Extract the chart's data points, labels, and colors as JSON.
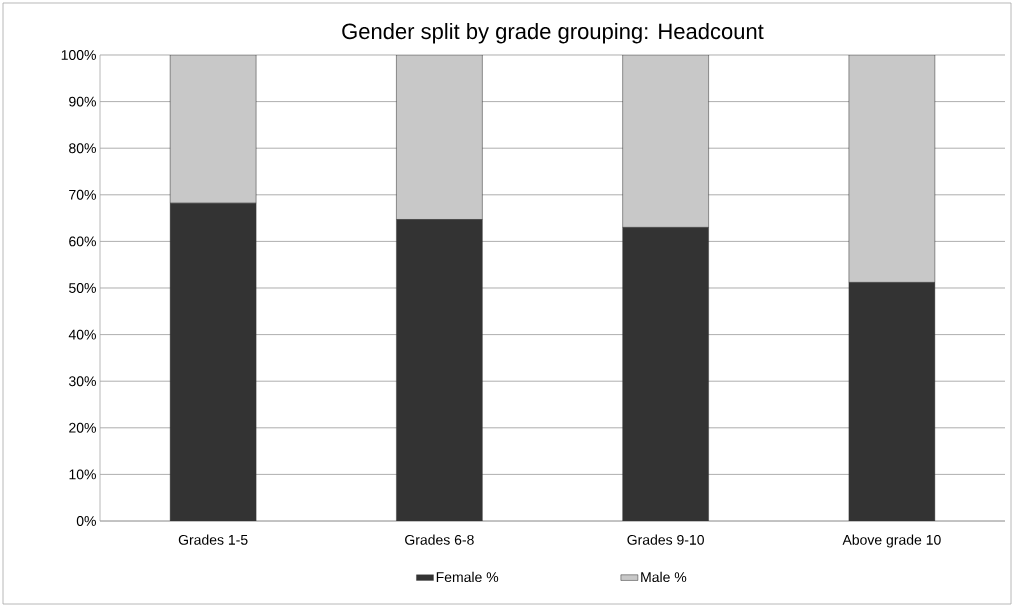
{
  "chart_data": {
    "type": "bar",
    "title": "Gender split by grade grouping: Headcount",
    "categories": [
      "Grades 1-5",
      "Grades 6-8",
      "Grades 9-10",
      "Above grade 10"
    ],
    "series": [
      {
        "name": "Female %",
        "color": "#333333",
        "values": [
          68.2,
          64.7,
          63.0,
          51.2
        ]
      },
      {
        "name": "Male %",
        "color": "#c8c8c8",
        "values": [
          31.8,
          35.3,
          37.0,
          48.8
        ]
      }
    ],
    "stacked": true,
    "ylim": [
      0,
      100
    ],
    "yticks": [
      {
        "value": 0,
        "label": "0%"
      },
      {
        "value": 10,
        "label": "10%"
      },
      {
        "value": 20,
        "label": "20%"
      },
      {
        "value": 30,
        "label": "30%"
      },
      {
        "value": 40,
        "label": "40%"
      },
      {
        "value": 50,
        "label": "50%"
      },
      {
        "value": 60,
        "label": "60%"
      },
      {
        "value": 70,
        "label": "70%"
      },
      {
        "value": 80,
        "label": "80%"
      },
      {
        "value": 90,
        "label": "90%"
      },
      {
        "value": 100,
        "label": "100%"
      }
    ],
    "grid": "y",
    "legend": "bottom"
  }
}
